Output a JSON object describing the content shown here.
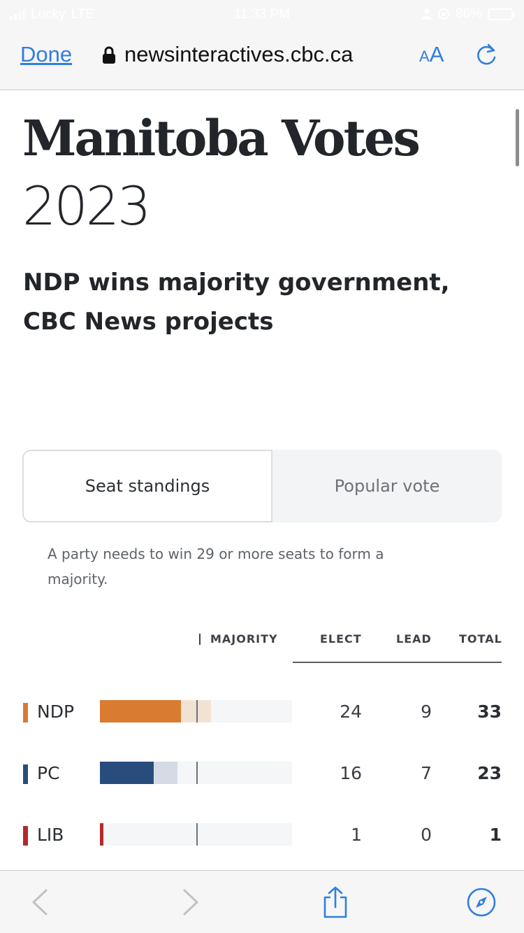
{
  "status_bar": {
    "carrier": "Lucky",
    "network": "LTE",
    "time": "11:33 PM",
    "battery_percent": "86%",
    "battery_level": 0.86
  },
  "browser": {
    "done_label": "Done",
    "url": "newsinteractives.cbc.ca",
    "text_size_small": "A",
    "text_size_large": "A"
  },
  "page": {
    "title": "Manitoba Votes",
    "year": "2023",
    "headline": "NDP wins majority government, CBC News projects",
    "tabs": [
      {
        "label": "Seat standings",
        "active": true
      },
      {
        "label": "Popular vote",
        "active": false
      }
    ],
    "note": "A party needs to win 29 or more seats to form a majority."
  },
  "table": {
    "headers": {
      "majority": "MAJORITY",
      "elect": "ELECT",
      "lead": "LEAD",
      "total": "TOTAL"
    },
    "majority_seats": 29,
    "bar_max_seats": 57,
    "rows": [
      {
        "party": "NDP",
        "color": "#d97b31",
        "lead_color": "#f2e2d4",
        "elect": "24",
        "lead": "9",
        "total": "33"
      },
      {
        "party": "PC",
        "color": "#284d7d",
        "lead_color": "#d5dbe4",
        "elect": "16",
        "lead": "7",
        "total": "23"
      },
      {
        "party": "LIB",
        "color": "#b5282b",
        "lead_color": "#f0d4d4",
        "elect": "1",
        "lead": "0",
        "total": "1"
      }
    ]
  },
  "colors": {
    "accent": "#2f7ee0"
  },
  "toolbar": {
    "icons": [
      "back-icon",
      "forward-icon",
      "share-icon",
      "compass-icon"
    ]
  }
}
